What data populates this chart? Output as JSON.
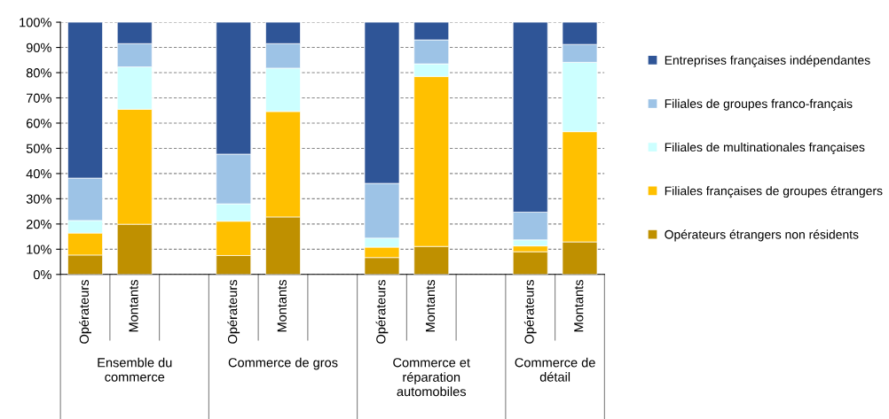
{
  "chart_data": {
    "type": "bar",
    "stacked": true,
    "categories": [
      "Opérateurs",
      "Montants",
      null,
      "Opérateurs",
      "Montants",
      null,
      "Opérateurs",
      "Montants",
      null,
      "Opérateurs",
      "Montants"
    ],
    "series": [
      {
        "name": "Opérateurs étrangers non résidents",
        "color": "#bf9000",
        "values": [
          7.7,
          19.9,
          null,
          7.5,
          22.8,
          null,
          6.7,
          11.1,
          null,
          9.0,
          12.9
        ]
      },
      {
        "name": "Filiales françaises de groupes étrangers",
        "color": "#ffc000",
        "values": [
          8.7,
          45.6,
          null,
          13.6,
          41.8,
          null,
          4.1,
          67.4,
          null,
          2.3,
          43.7
        ]
      },
      {
        "name": "Filiales de multinationales françaises",
        "color": "#ccffff",
        "values": [
          5.0,
          16.8,
          null,
          6.9,
          17.2,
          null,
          3.6,
          5.0,
          null,
          2.4,
          27.5
        ]
      },
      {
        "name": "Filiales de groupes franco-français",
        "color": "#9dc3e6",
        "values": [
          16.8,
          9.2,
          null,
          19.7,
          9.7,
          null,
          21.7,
          9.5,
          null,
          11.0,
          7.1
        ]
      },
      {
        "name": "Entreprises françaises indépendantes",
        "color": "#2f5597",
        "values": [
          61.8,
          8.5,
          null,
          52.3,
          8.5,
          null,
          63.9,
          7.0,
          null,
          75.3,
          8.8
        ]
      }
    ],
    "annotations": [
      "Ensemble du commerce",
      "Commerce de gros",
      "Commerce et réparation automobiles",
      "Commerce de détail"
    ],
    "ylim": [
      0,
      100
    ],
    "yticks": [
      {
        "value": 0,
        "label": "0%"
      },
      {
        "value": 10,
        "label": "10%"
      },
      {
        "value": 20,
        "label": "20%"
      },
      {
        "value": 30,
        "label": "30%"
      },
      {
        "value": 40,
        "label": "40%"
      },
      {
        "value": 50,
        "label": "50%"
      },
      {
        "value": 60,
        "label": "60%"
      },
      {
        "value": 70,
        "label": "70%"
      },
      {
        "value": 80,
        "label": "80%"
      },
      {
        "value": 90,
        "label": "90%"
      },
      {
        "value": 100,
        "label": "100%"
      }
    ],
    "grid": "y",
    "legend": "right"
  }
}
